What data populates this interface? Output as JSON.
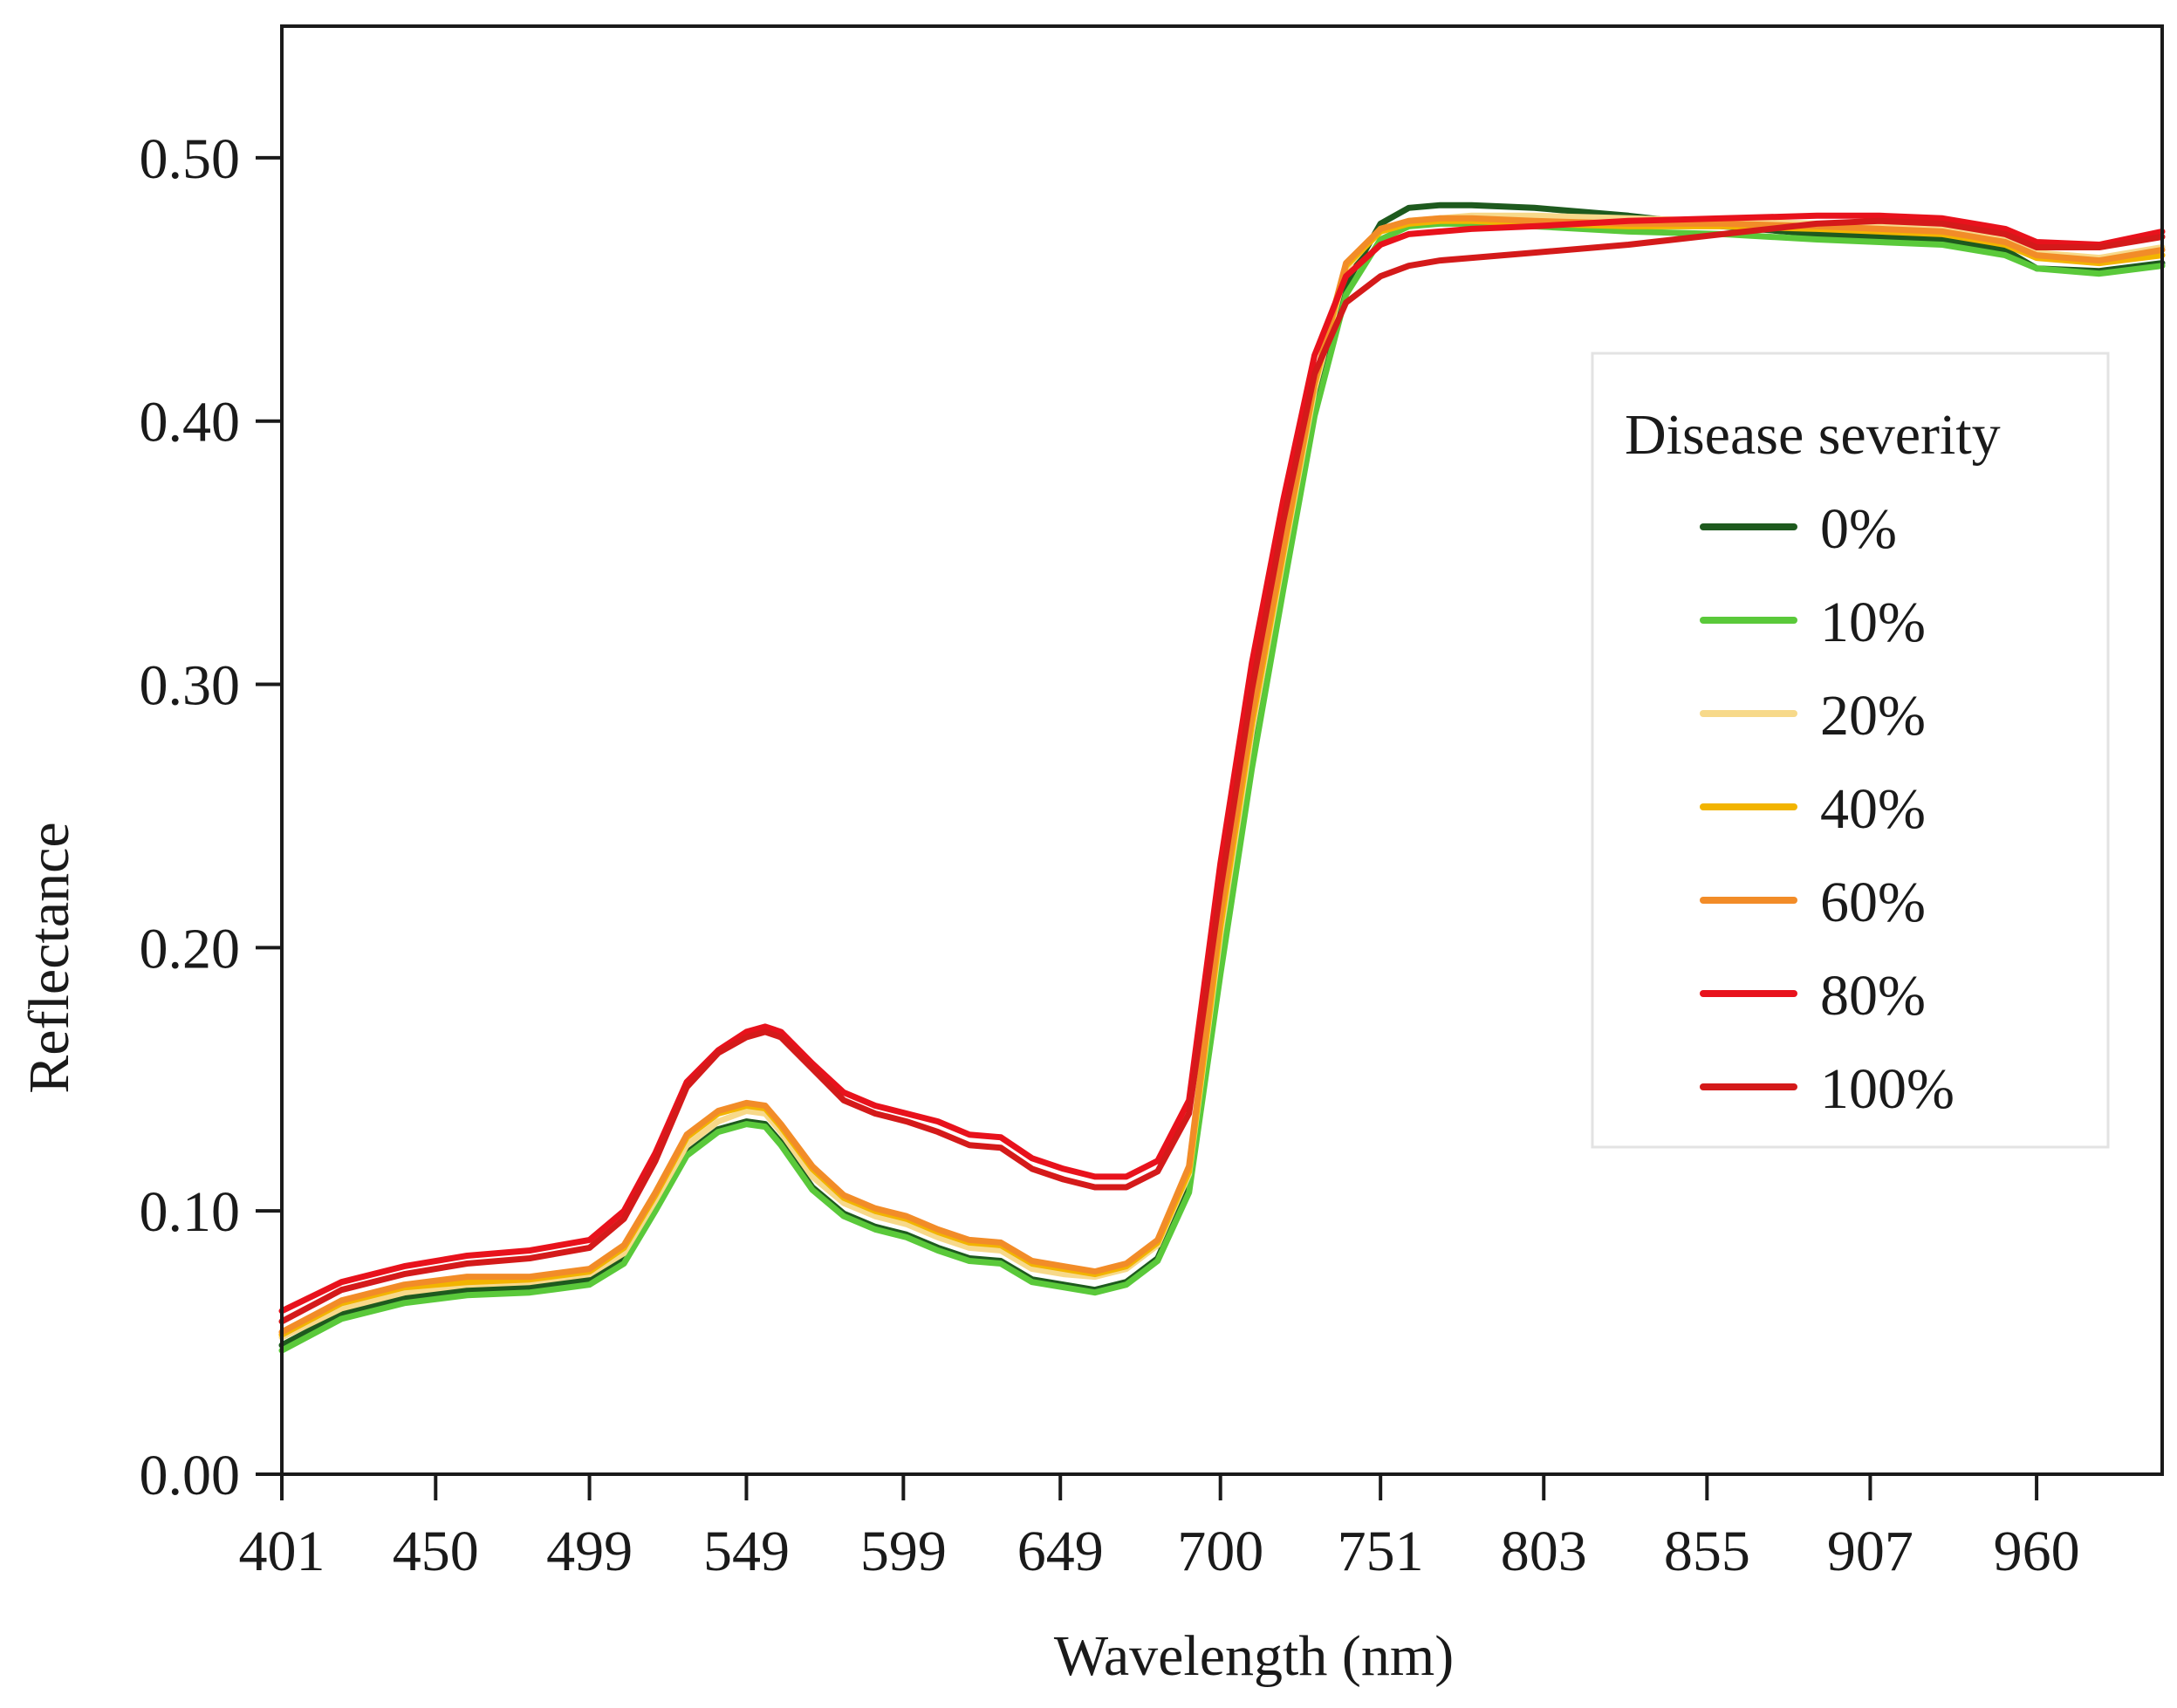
{
  "chart_data": {
    "type": "line",
    "xlabel": "Wavelength (nm)",
    "ylabel": "Reflectance",
    "xlim": [
      401,
      1000
    ],
    "ylim": [
      0,
      0.55
    ],
    "xticks": [
      {
        "value": 401,
        "label": "401"
      },
      {
        "value": 450,
        "label": "450"
      },
      {
        "value": 499,
        "label": "499"
      },
      {
        "value": 549,
        "label": "549"
      },
      {
        "value": 599,
        "label": "599"
      },
      {
        "value": 649,
        "label": "649"
      },
      {
        "value": 700,
        "label": "700"
      },
      {
        "value": 751,
        "label": "751"
      },
      {
        "value": 803,
        "label": "803"
      },
      {
        "value": 855,
        "label": "855"
      },
      {
        "value": 907,
        "label": "907"
      },
      {
        "value": 960,
        "label": "960"
      }
    ],
    "yticks": [
      {
        "value": 0.0,
        "label": "0.00"
      },
      {
        "value": 0.1,
        "label": "0.10"
      },
      {
        "value": 0.2,
        "label": "0.20"
      },
      {
        "value": 0.3,
        "label": "0.30"
      },
      {
        "value": 0.4,
        "label": "0.40"
      },
      {
        "value": 0.5,
        "label": "0.50"
      }
    ],
    "grid": false,
    "legend": {
      "title": "Disease severity",
      "position": "right"
    },
    "x": [
      401,
      420,
      440,
      460,
      480,
      499,
      510,
      520,
      530,
      540,
      549,
      555,
      560,
      570,
      580,
      590,
      600,
      610,
      620,
      630,
      640,
      650,
      660,
      670,
      680,
      690,
      700,
      710,
      720,
      730,
      740,
      751,
      760,
      770,
      780,
      800,
      830,
      860,
      890,
      910,
      930,
      950,
      960,
      980,
      1000
    ],
    "series": [
      {
        "name": "0%",
        "color": "#1e5a1e",
        "values": [
          0.049,
          0.061,
          0.067,
          0.07,
          0.071,
          0.074,
          0.082,
          0.102,
          0.122,
          0.131,
          0.134,
          0.133,
          0.126,
          0.109,
          0.099,
          0.094,
          0.091,
          0.086,
          0.082,
          0.081,
          0.074,
          0.072,
          0.07,
          0.073,
          0.082,
          0.109,
          0.195,
          0.272,
          0.339,
          0.405,
          0.452,
          0.475,
          0.481,
          0.482,
          0.482,
          0.481,
          0.478,
          0.474,
          0.471,
          0.47,
          0.469,
          0.465,
          0.458,
          0.457,
          0.46
        ]
      },
      {
        "name": "10%",
        "color": "#5ac93a",
        "values": [
          0.047,
          0.059,
          0.065,
          0.068,
          0.069,
          0.072,
          0.08,
          0.1,
          0.121,
          0.13,
          0.133,
          0.132,
          0.125,
          0.108,
          0.098,
          0.093,
          0.09,
          0.085,
          0.081,
          0.08,
          0.073,
          0.071,
          0.069,
          0.072,
          0.081,
          0.107,
          0.19,
          0.268,
          0.336,
          0.402,
          0.448,
          0.469,
          0.474,
          0.475,
          0.475,
          0.474,
          0.472,
          0.471,
          0.469,
          0.468,
          0.467,
          0.463,
          0.458,
          0.456,
          0.459
        ]
      },
      {
        "name": "20%",
        "color": "#f7d98a",
        "values": [
          0.052,
          0.063,
          0.069,
          0.072,
          0.073,
          0.076,
          0.084,
          0.104,
          0.125,
          0.134,
          0.138,
          0.137,
          0.13,
          0.113,
          0.103,
          0.098,
          0.095,
          0.09,
          0.086,
          0.085,
          0.078,
          0.076,
          0.075,
          0.078,
          0.087,
          0.114,
          0.205,
          0.282,
          0.348,
          0.412,
          0.458,
          0.473,
          0.476,
          0.477,
          0.478,
          0.478,
          0.477,
          0.476,
          0.475,
          0.474,
          0.473,
          0.469,
          0.464,
          0.462,
          0.466
        ]
      },
      {
        "name": "40%",
        "color": "#f2b400",
        "values": [
          0.053,
          0.065,
          0.071,
          0.073,
          0.074,
          0.077,
          0.086,
          0.106,
          0.128,
          0.137,
          0.14,
          0.139,
          0.132,
          0.116,
          0.105,
          0.1,
          0.097,
          0.092,
          0.088,
          0.087,
          0.08,
          0.078,
          0.076,
          0.079,
          0.088,
          0.115,
          0.208,
          0.285,
          0.35,
          0.414,
          0.459,
          0.472,
          0.475,
          0.476,
          0.476,
          0.475,
          0.474,
          0.474,
          0.473,
          0.472,
          0.471,
          0.467,
          0.462,
          0.46,
          0.463
        ]
      },
      {
        "name": "60%",
        "color": "#f28c28",
        "values": [
          0.054,
          0.066,
          0.072,
          0.075,
          0.075,
          0.078,
          0.087,
          0.107,
          0.129,
          0.138,
          0.141,
          0.14,
          0.133,
          0.117,
          0.106,
          0.101,
          0.098,
          0.093,
          0.089,
          0.088,
          0.081,
          0.079,
          0.077,
          0.08,
          0.089,
          0.117,
          0.212,
          0.288,
          0.352,
          0.415,
          0.46,
          0.473,
          0.476,
          0.477,
          0.477,
          0.476,
          0.475,
          0.475,
          0.474,
          0.473,
          0.472,
          0.468,
          0.463,
          0.461,
          0.465
        ]
      },
      {
        "name": "80%",
        "color": "#e8121c",
        "values": [
          0.062,
          0.073,
          0.079,
          0.083,
          0.085,
          0.089,
          0.1,
          0.122,
          0.149,
          0.161,
          0.168,
          0.17,
          0.168,
          0.156,
          0.145,
          0.14,
          0.137,
          0.134,
          0.129,
          0.128,
          0.12,
          0.116,
          0.113,
          0.113,
          0.119,
          0.142,
          0.232,
          0.308,
          0.37,
          0.425,
          0.455,
          0.467,
          0.471,
          0.472,
          0.473,
          0.474,
          0.476,
          0.477,
          0.478,
          0.478,
          0.477,
          0.473,
          0.468,
          0.467,
          0.472
        ]
      },
      {
        "name": "100%",
        "color": "#d41a1a",
        "values": [
          0.058,
          0.07,
          0.076,
          0.08,
          0.082,
          0.086,
          0.097,
          0.119,
          0.147,
          0.16,
          0.166,
          0.168,
          0.166,
          0.154,
          0.142,
          0.137,
          0.134,
          0.13,
          0.125,
          0.124,
          0.116,
          0.112,
          0.109,
          0.109,
          0.115,
          0.137,
          0.222,
          0.298,
          0.362,
          0.418,
          0.445,
          0.455,
          0.459,
          0.461,
          0.462,
          0.464,
          0.467,
          0.471,
          0.475,
          0.476,
          0.475,
          0.471,
          0.466,
          0.466,
          0.47
        ]
      }
    ]
  }
}
